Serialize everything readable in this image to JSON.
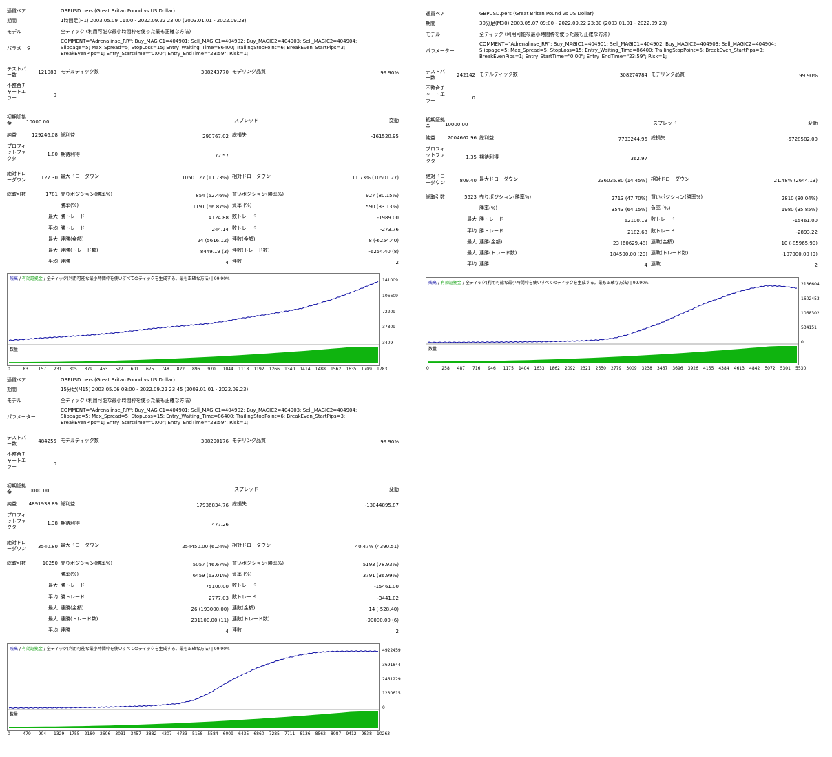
{
  "labels": {
    "symbol": "通貨ペア",
    "period": "期間",
    "model": "モデル",
    "params": "パラメーター",
    "bars": "テストバー数",
    "ticks": "モデルティック数",
    "quality": "モデリング品質",
    "mismatch": "不整合チャートエラー",
    "initial_deposit": "初期証拠金",
    "spread": "スプレッド",
    "spread_value": "変動",
    "net_profit": "純益",
    "gross_profit": "総利益",
    "gross_loss": "総損失",
    "profit_factor": "プロフィットファクタ",
    "expected_payoff": "期待利得",
    "abs_dd": "絶対ドローダウン",
    "max_dd": "最大ドローダウン",
    "rel_dd": "相対ドローダウン",
    "total_trades": "総取引数",
    "short_pos": "売りポジション(勝率%)",
    "long_pos": "買いポジション(勝率%)",
    "win_rate": "勝率(%)",
    "loss_rate": "負率 (%)",
    "max": "最大",
    "avg": "平均",
    "win_trade": "勝トレード",
    "loss_trade": "敗トレード",
    "consec_wins_money": "連勝(金額)",
    "consec_losses_money": "連敗(金額)",
    "consec_wins_count": "連勝(トレード数)",
    "consec_losses_count": "連敗(トレード数)",
    "consec_wins": "連勝",
    "consec_losses": "連敗",
    "chart_balance": "残高",
    "chart_equity": "有効証拠金",
    "chart_model": "全ティック(利用可能な最小時間枠を使いすべてのティックを生成する。最も正確な方法)",
    "volume": "数量"
  },
  "reports": [
    {
      "symbol": "GBPUSD.pers (Great Britan Pound vs US Dollar)",
      "period": "1時間足(H1) 2003.05.09 11:00 - 2022.09.22 23:00 (2003.01.01 - 2022.09.23)",
      "model": "全ティック (利用可能な最小時間枠を使った最も正確な方法)",
      "params": "COMMENT=\"Adrenalinse_RR\"; Buy_MAGIC1=404901; Sell_MAGIC1=404902; Buy_MAGIC2=404903; Sell_MAGIC2=404904; Slippage=5; Max_Spread=5; StopLoss=15; Entry_Waiting_Time=86400; TrailingStopPoint=6; BreakEven_StartPips=3; BreakEvenPips=1; Entry_StartTime=\"0:00\"; Entry_EndTime=\"23:59\"; Risk=1;",
      "bars": "121083",
      "ticks": "308243770",
      "quality": "99.90%",
      "mismatch": "0",
      "initial_deposit": "10000.00",
      "net_profit": "129246.08",
      "gross_profit": "290767.02",
      "gross_loss": "-161520.95",
      "profit_factor": "1.80",
      "expected_payoff": "72.57",
      "abs_dd": "127.30",
      "max_dd": "10501.27 (11.73%)",
      "rel_dd": "11.73% (10501.27)",
      "total_trades": "1781",
      "short_pos": "854 (52.46%)",
      "long_pos": "927 (80.15%)",
      "win_rate": "1191 (66.87%)",
      "loss_rate": "590 (33.13%)",
      "max_win": "4124.88",
      "max_loss": "-1989.00",
      "avg_win": "244.14",
      "avg_loss": "-273.76",
      "max_consec_wins_money": "24 (5616.12)",
      "max_consec_losses_money": "8 (-6254.40)",
      "max_consec_wins_count": "8449.19 (3)",
      "max_consec_losses_count": "-6254.40 (8)",
      "avg_consec_wins": "4",
      "avg_consec_losses": "2",
      "quality_pct": "99.90%",
      "y_ticks": [
        "141009",
        "106609",
        "72209",
        "37809",
        "3409"
      ],
      "x_ticks": [
        "0",
        "83",
        "157",
        "231",
        "305",
        "379",
        "453",
        "527",
        "601",
        "675",
        "748",
        "822",
        "896",
        "970",
        "1044",
        "1118",
        "1192",
        "1266",
        "1340",
        "1414",
        "1488",
        "1562",
        "1635",
        "1709",
        "1783"
      ]
    },
    {
      "symbol": "GBPUSD.pers (Great Britan Pound vs US Dollar)",
      "period": "30分足(M30) 2003.05.07 09:00 - 2022.09.22 23:30 (2003.01.01 - 2022.09.23)",
      "model": "全ティック (利用可能な最小時間枠を使った最も正確な方法)",
      "params": "COMMENT=\"Adrenalinse_RR\"; Buy_MAGIC1=404901; Sell_MAGIC1=404902; Buy_MAGIC2=404903; Sell_MAGIC2=404904; Slippage=5; Max_Spread=5; StopLoss=15; Entry_Waiting_Time=86400; TrailingStopPoint=6; BreakEven_StartPips=3; BreakEvenPips=1; Entry_StartTime=\"0:00\"; Entry_EndTime=\"23:59\"; Risk=1;",
      "bars": "242142",
      "ticks": "308274784",
      "quality": "99.90%",
      "mismatch": "0",
      "initial_deposit": "10000.00",
      "net_profit": "2004662.96",
      "gross_profit": "7733244.96",
      "gross_loss": "-5728582.00",
      "profit_factor": "1.35",
      "expected_payoff": "362.97",
      "abs_dd": "809.40",
      "max_dd": "236035.80 (14.45%)",
      "rel_dd": "21.48% (2644.13)",
      "total_trades": "5523",
      "short_pos": "2713 (47.70%)",
      "long_pos": "2810 (80.04%)",
      "win_rate": "3543 (64.15%)",
      "loss_rate": "1980 (35.85%)",
      "max_win": "62100.19",
      "max_loss": "-15461.00",
      "avg_win": "2182.68",
      "avg_loss": "-2893.22",
      "max_consec_wins_money": "23 (60629.48)",
      "max_consec_losses_money": "10 (-85965.90)",
      "max_consec_wins_count": "184500.00 (20)",
      "max_consec_losses_count": "-107000.00 (9)",
      "avg_consec_wins": "4",
      "avg_consec_losses": "2",
      "quality_pct": "99.90%",
      "y_ticks": [
        "2136604",
        "1602453",
        "1068302",
        "534151",
        "0"
      ],
      "x_ticks": [
        "0",
        "258",
        "487",
        "716",
        "946",
        "1175",
        "1404",
        "1633",
        "1862",
        "2092",
        "2321",
        "2550",
        "2779",
        "3009",
        "3238",
        "3467",
        "3696",
        "3926",
        "4155",
        "4384",
        "4613",
        "4842",
        "5072",
        "5301",
        "5530"
      ]
    },
    {
      "symbol": "GBPUSD.pers (Great Britan Pound vs US Dollar)",
      "period": "15分足(M15) 2003.05.06 08:00 - 2022.09.22 23:45 (2003.01.01 - 2022.09.23)",
      "model": "全ティック (利用可能な最小時間枠を使った最も正確な方法)",
      "params": "COMMENT=\"Adrenalinse_RR\"; Buy_MAGIC1=404901; Sell_MAGIC1=404902; Buy_MAGIC2=404903; Sell_MAGIC2=404904; Slippage=5; Max_Spread=5; StopLoss=15; Entry_Waiting_Time=86400; TrailingStopPoint=6; BreakEven_StartPips=3; BreakEvenPips=1; Entry_StartTime=\"0:00\"; Entry_EndTime=\"23:59\"; Risk=1;",
      "bars": "484255",
      "ticks": "308290176",
      "quality": "99.90%",
      "mismatch": "0",
      "initial_deposit": "10000.00",
      "net_profit": "4891938.89",
      "gross_profit": "17936834.76",
      "gross_loss": "-13044895.87",
      "profit_factor": "1.38",
      "expected_payoff": "477.26",
      "abs_dd": "3540.80",
      "max_dd": "254450.00 (6.24%)",
      "rel_dd": "40.47% (4390.51)",
      "total_trades": "10250",
      "short_pos": "5057 (46.67%)",
      "long_pos": "5193 (78.93%)",
      "win_rate": "6459 (63.01%)",
      "loss_rate": "3791 (36.99%)",
      "max_win": "75100.00",
      "max_loss": "-15461.00",
      "avg_win": "2777.03",
      "avg_loss": "-3441.02",
      "max_consec_wins_money": "26 (193000.00)",
      "max_consec_losses_money": "14 (-528.40)",
      "max_consec_wins_count": "231100.00 (11)",
      "max_consec_losses_count": "-90000.00 (6)",
      "avg_consec_wins": "4",
      "avg_consec_losses": "2",
      "quality_pct": "99.90%",
      "y_ticks": [
        "4922459",
        "3691844",
        "2461229",
        "1230615",
        "0"
      ],
      "x_ticks": [
        "0",
        "479",
        "904",
        "1329",
        "1755",
        "2180",
        "2606",
        "3031",
        "3457",
        "3882",
        "4307",
        "4733",
        "5158",
        "5584",
        "6009",
        "6435",
        "6860",
        "7285",
        "7711",
        "8136",
        "8562",
        "8987",
        "9412",
        "9838",
        "10263"
      ]
    }
  ],
  "chart_data": [
    {
      "type": "line",
      "title": "",
      "series": [
        {
          "name": "残高",
          "color": "#1a1aa8",
          "x": [
            0,
            83,
            157,
            231,
            305,
            379,
            453,
            527,
            601,
            675,
            748,
            822,
            896,
            970,
            1044,
            1118,
            1192,
            1266,
            1340,
            1414,
            1488,
            1562,
            1635,
            1709,
            1783
          ],
          "values": [
            10000,
            12500,
            15000,
            17000,
            19000,
            21000,
            24000,
            27000,
            31000,
            35000,
            38000,
            41000,
            44000,
            47000,
            52000,
            58000,
            63000,
            68000,
            74000,
            80000,
            90000,
            100000,
            112000,
            125000,
            139000
          ]
        }
      ],
      "ylim": [
        3409,
        141009
      ]
    },
    {
      "type": "line",
      "title": "",
      "series": [
        {
          "name": "残高",
          "color": "#1a1aa8",
          "x": [
            0,
            258,
            487,
            716,
            946,
            1175,
            1404,
            1633,
            1862,
            2092,
            2321,
            2550,
            2779,
            3009,
            3238,
            3467,
            3696,
            3926,
            4155,
            4384,
            4613,
            4842,
            5072,
            5301,
            5530
          ],
          "values": [
            10000,
            12000,
            15000,
            18000,
            22000,
            26000,
            30000,
            35000,
            45000,
            55000,
            70000,
            100000,
            160000,
            300000,
            500000,
            700000,
            950000,
            1200000,
            1450000,
            1650000,
            1850000,
            2000000,
            2100000,
            2080000,
            2010000
          ]
        }
      ],
      "ylim": [
        0,
        2136604
      ]
    },
    {
      "type": "line",
      "title": "",
      "series": [
        {
          "name": "残高",
          "color": "#1a1aa8",
          "x": [
            0,
            479,
            904,
            1329,
            1755,
            2180,
            2606,
            3031,
            3457,
            3882,
            4307,
            4733,
            5158,
            5584,
            6009,
            6435,
            6860,
            7285,
            7711,
            8136,
            8562,
            8987,
            9412,
            9838,
            10263
          ],
          "values": [
            10000,
            15000,
            20000,
            30000,
            40000,
            55000,
            80000,
            110000,
            150000,
            200000,
            280000,
            400000,
            700000,
            1300000,
            2100000,
            2800000,
            3400000,
            3900000,
            4300000,
            4600000,
            4800000,
            4880000,
            4900000,
            4910000,
            4890000
          ]
        }
      ],
      "ylim": [
        0,
        4922459
      ]
    }
  ]
}
